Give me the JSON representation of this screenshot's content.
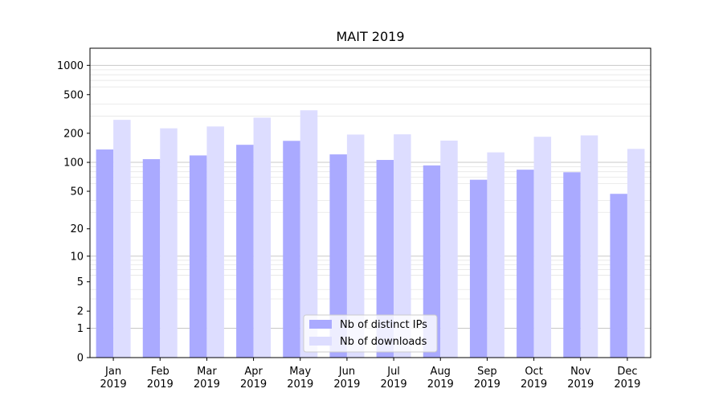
{
  "chart_data": {
    "type": "bar",
    "title": "MAIT 2019",
    "xlabel": "",
    "ylabel": "",
    "yscale": "log1p",
    "ylim": [
      0,
      1500
    ],
    "yticks": [
      0,
      1,
      2,
      5,
      10,
      20,
      50,
      100,
      200,
      500,
      1000
    ],
    "ytick_labels": [
      "0",
      "1",
      "2",
      "5",
      "10",
      "20",
      "50",
      "100",
      "200",
      "500",
      "1000"
    ],
    "grid": true,
    "categories": [
      {
        "month": "Jan",
        "year": "2019"
      },
      {
        "month": "Feb",
        "year": "2019"
      },
      {
        "month": "Mar",
        "year": "2019"
      },
      {
        "month": "Apr",
        "year": "2019"
      },
      {
        "month": "May",
        "year": "2019"
      },
      {
        "month": "Jun",
        "year": "2019"
      },
      {
        "month": "Jul",
        "year": "2019"
      },
      {
        "month": "Aug",
        "year": "2019"
      },
      {
        "month": "Sep",
        "year": "2019"
      },
      {
        "month": "Oct",
        "year": "2019"
      },
      {
        "month": "Nov",
        "year": "2019"
      },
      {
        "month": "Dec",
        "year": "2019"
      }
    ],
    "series": [
      {
        "name": "Nb of distinct IPs",
        "color": "#aaaaff",
        "values": [
          136,
          108,
          118,
          152,
          167,
          121,
          106,
          93,
          66,
          84,
          79,
          47
        ]
      },
      {
        "name": "Nb of downloads",
        "color": "#ddddff",
        "values": [
          275,
          225,
          235,
          290,
          345,
          194,
          195,
          168,
          127,
          184,
          190,
          138
        ]
      }
    ],
    "legend": {
      "position": "lower-center",
      "entries": [
        "Nb of distinct IPs",
        "Nb of downloads"
      ]
    }
  }
}
